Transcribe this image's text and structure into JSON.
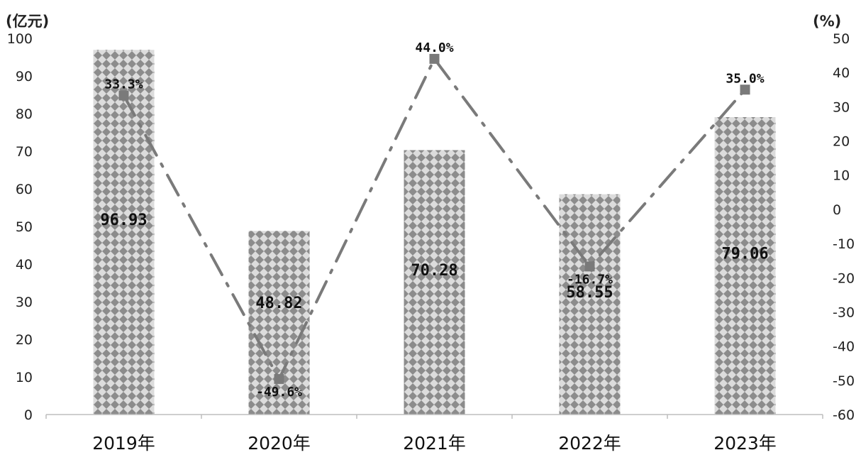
{
  "chart_data": {
    "type": "bar",
    "categories": [
      "2019年",
      "2020年",
      "2021年",
      "2022年",
      "2023年"
    ],
    "series": [
      {
        "type": "bar",
        "axis": "left",
        "values": [
          96.93,
          48.82,
          70.28,
          58.55,
          79.06
        ],
        "labels": [
          "96.93",
          "48.82",
          "70.28",
          "58.55",
          "79.06"
        ]
      },
      {
        "type": "line",
        "axis": "right",
        "values": [
          33.3,
          -49.6,
          44.0,
          -16.7,
          35.0
        ],
        "labels": [
          "33.3%",
          "-49.6%",
          "44.0%",
          "-16.7%",
          "35.0%"
        ]
      }
    ],
    "left_axis": {
      "unit": "(亿元)",
      "min": 0,
      "max": 100,
      "step": 10
    },
    "right_axis": {
      "unit": "(%)",
      "min": -60,
      "max": 50,
      "step": 10
    },
    "grid": false,
    "colors": {
      "bar_bg": "#d9d9d9",
      "bar_pattern": "#8a8a8a",
      "line": "#7a7a7a"
    }
  }
}
